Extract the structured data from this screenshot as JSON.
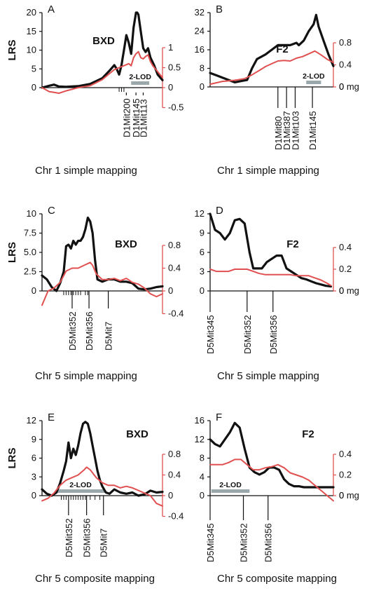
{
  "colors": {
    "lrs_line": "#111111",
    "effect_line": "#e05050",
    "lod_bar": "#9aa8ab",
    "axis": "#111111"
  },
  "chart_data": [
    {
      "type": "line",
      "panel": "A",
      "title": "BXD",
      "ylabel": "LRS",
      "caption": "Chr 1 simple mapping",
      "ylim": [
        0,
        20
      ],
      "yticks": [
        "0",
        "5",
        "10",
        "15",
        "20"
      ],
      "y2lim": [
        -0.5,
        1
      ],
      "y2ticks": [
        "-0.5",
        "0",
        "0.5",
        "1"
      ],
      "y2unit": "",
      "xlim": [
        0,
        100
      ],
      "lod_label": "2-LOD",
      "lod_range": [
        74,
        89
      ],
      "markers": [
        {
          "label": "D1Mit200",
          "x": 70
        },
        {
          "label": "D1Mit145",
          "x": 78
        },
        {
          "label": "D1Mit113",
          "x": 84
        }
      ],
      "minor_ticks": [
        64,
        66,
        68
      ],
      "series": [
        {
          "role": "lrs",
          "x": [
            0,
            6,
            10,
            14,
            20,
            30,
            40,
            50,
            56,
            60,
            62,
            64,
            66,
            67,
            68,
            70,
            72,
            74,
            76,
            78,
            79,
            80,
            82,
            84,
            86,
            88,
            90,
            93,
            96,
            100
          ],
          "y": [
            0,
            0.5,
            0.8,
            0.3,
            0.2,
            0.4,
            1,
            2.5,
            4.5,
            6,
            5,
            3.5,
            6,
            8,
            10,
            14,
            12,
            9,
            16,
            20,
            20,
            19.5,
            15,
            10.5,
            9.5,
            10.5,
            8,
            6,
            3.5,
            2
          ]
        },
        {
          "role": "effect",
          "x": [
            0,
            6,
            10,
            14,
            20,
            30,
            40,
            50,
            56,
            60,
            64,
            68,
            72,
            74,
            76,
            78,
            80,
            82,
            84,
            86,
            88,
            90,
            92,
            96,
            100
          ],
          "y": [
            0,
            -0.1,
            -0.12,
            -0.14,
            -0.08,
            0,
            0.05,
            0.2,
            0.35,
            0.45,
            0.5,
            0.55,
            0.6,
            0.55,
            0.75,
            0.85,
            0.9,
            0.75,
            0.72,
            0.78,
            0.82,
            0.65,
            0.55,
            0.4,
            0.25
          ]
        }
      ]
    },
    {
      "type": "line",
      "panel": "B",
      "title": "F2",
      "ylabel": "",
      "caption": "Chr 1 simple mapping",
      "ylim": [
        0,
        32
      ],
      "yticks": [
        "0",
        "8",
        "16",
        "24",
        "32"
      ],
      "y2lim": [
        0,
        0.8
      ],
      "y2ticks": [
        "0",
        "0.4",
        "0.8"
      ],
      "y2unit": "0 mg",
      "xlim": [
        0,
        100
      ],
      "lod_label": "2-LOD",
      "lod_range": [
        78,
        90
      ],
      "markers": [
        {
          "label": "D1Mit80",
          "x": 55
        },
        {
          "label": "D1Mit387",
          "x": 62
        },
        {
          "label": "D1Mit103",
          "x": 69
        },
        {
          "label": "D1Mit145",
          "x": 83
        }
      ],
      "minor_ticks": [],
      "series": [
        {
          "role": "lrs",
          "x": [
            0,
            5,
            10,
            15,
            20,
            25,
            30,
            34,
            38,
            45,
            50,
            55,
            60,
            65,
            70,
            72,
            76,
            80,
            84,
            86,
            88,
            92,
            96,
            100
          ],
          "y": [
            6,
            5,
            4,
            3,
            2,
            2.5,
            3,
            8,
            12,
            14,
            16,
            18,
            18,
            18,
            19,
            18,
            20,
            24,
            27,
            31,
            26,
            20,
            14,
            9
          ]
        },
        {
          "role": "effect",
          "x": [
            0,
            10,
            20,
            28,
            34,
            40,
            45,
            50,
            55,
            60,
            65,
            70,
            75,
            80,
            85,
            90,
            95,
            100
          ],
          "y": [
            0.05,
            0.1,
            0.12,
            0.15,
            0.22,
            0.3,
            0.37,
            0.42,
            0.47,
            0.48,
            0.47,
            0.52,
            0.55,
            0.6,
            0.65,
            0.58,
            0.5,
            0.44
          ]
        }
      ]
    },
    {
      "type": "line",
      "panel": "C",
      "title": "BXD",
      "ylabel": "LRS",
      "caption": "Chr 5 simple mapping",
      "ylim": [
        0,
        10
      ],
      "yticks": [
        "0",
        "2.5",
        "5.0",
        "7.5",
        "10"
      ],
      "y2lim": [
        -0.4,
        0.8
      ],
      "y2ticks": [
        "-0.4",
        "0",
        "0.4",
        "0.8"
      ],
      "y2unit": "",
      "xlim": [
        0,
        100
      ],
      "lod_label": "",
      "lod_range": [],
      "markers": [
        {
          "label": "D5Mit352",
          "x": 25
        },
        {
          "label": "D5Mit356",
          "x": 39
        },
        {
          "label": "D5Mit7",
          "x": 55
        }
      ],
      "minor_ticks": [
        18,
        20,
        22,
        24,
        26,
        28,
        30,
        32,
        36,
        38
      ],
      "series": [
        {
          "role": "lrs",
          "x": [
            0,
            4,
            8,
            12,
            15,
            18,
            20,
            22,
            24,
            26,
            28,
            30,
            32,
            34,
            36,
            38,
            40,
            42,
            44,
            46,
            50,
            55,
            60,
            65,
            70,
            75,
            80,
            85,
            90,
            95,
            100
          ],
          "y": [
            2,
            1.5,
            0.5,
            0,
            1,
            2.5,
            5.8,
            6,
            5.5,
            6.5,
            6,
            6.5,
            6.5,
            7,
            8,
            9.5,
            9,
            7.5,
            4,
            1.5,
            1.2,
            1.5,
            1.5,
            1.2,
            1.2,
            1,
            0.3,
            0.2,
            0.3,
            0.5,
            0.6
          ]
        },
        {
          "role": "effect",
          "x": [
            0,
            5,
            10,
            15,
            20,
            25,
            30,
            35,
            40,
            42,
            45,
            50,
            55,
            60,
            65,
            70,
            75,
            80,
            85,
            90,
            95,
            100
          ],
          "y": [
            -0.25,
            0,
            0.05,
            0.15,
            0.35,
            0.4,
            0.4,
            0.45,
            0.5,
            0.45,
            0.3,
            0.2,
            0.2,
            0.22,
            0.18,
            0.22,
            0.15,
            0.12,
            0.05,
            -0.05,
            -0.1,
            -0.05
          ]
        }
      ]
    },
    {
      "type": "line",
      "panel": "D",
      "title": "F2",
      "ylabel": "",
      "caption": "Chr 5 simple mapping",
      "ylim": [
        0,
        12
      ],
      "yticks": [
        "0",
        "3",
        "6",
        "9",
        "12"
      ],
      "y2lim": [
        0,
        0.4
      ],
      "y2ticks": [
        "0",
        "0.2",
        "0.4"
      ],
      "y2unit": "0 mg",
      "xlim": [
        0,
        100
      ],
      "lod_label": "",
      "lod_range": [],
      "markers": [
        {
          "label": "D5Mit345",
          "x": 0
        },
        {
          "label": "D5Mit352",
          "x": 30
        },
        {
          "label": "D5Mit356",
          "x": 51
        }
      ],
      "minor_ticks": [],
      "series": [
        {
          "role": "lrs",
          "x": [
            0,
            4,
            8,
            12,
            16,
            20,
            24,
            28,
            32,
            35,
            38,
            42,
            46,
            50,
            54,
            58,
            62,
            66,
            70,
            74,
            78,
            82,
            86,
            90,
            94,
            98
          ],
          "y": [
            12,
            9.5,
            9,
            8,
            9,
            11,
            11.2,
            10.5,
            6,
            3.5,
            3.5,
            3.5,
            4.5,
            5,
            5.5,
            5.5,
            3.5,
            3,
            2.5,
            2,
            1.8,
            1.5,
            1.2,
            1,
            0.8,
            0.7
          ]
        },
        {
          "role": "effect",
          "x": [
            0,
            5,
            10,
            15,
            20,
            25,
            30,
            35,
            40,
            45,
            50,
            55,
            60,
            65,
            70,
            75,
            80,
            85,
            90,
            95,
            98
          ],
          "y": [
            0.2,
            0.18,
            0.18,
            0.18,
            0.2,
            0.2,
            0.2,
            0.18,
            0.16,
            0.15,
            0.15,
            0.15,
            0.15,
            0.15,
            0.14,
            0.14,
            0.14,
            0.12,
            0.1,
            0.07,
            0.05
          ]
        }
      ]
    },
    {
      "type": "line",
      "panel": "E",
      "title": "BXD",
      "ylabel": "LRS",
      "caption": "Chr 5 composite mapping",
      "ylim": [
        0,
        12
      ],
      "yticks": [
        "0",
        "3",
        "6",
        "9",
        "12"
      ],
      "y2lim": [
        -0.4,
        0.8
      ],
      "y2ticks": [
        "-0.4",
        "0",
        "0.4",
        "0.8"
      ],
      "y2unit": "",
      "xlim": [
        0,
        100
      ],
      "lod_label": "2-LOD",
      "lod_range": [
        12,
        52
      ],
      "markers": [
        {
          "label": "D5Mit352",
          "x": 22
        },
        {
          "label": "D5Mit356",
          "x": 37
        },
        {
          "label": "D5Mit7",
          "x": 51
        }
      ],
      "minor_ticks": [
        16,
        18,
        20,
        24,
        26,
        28,
        30,
        32,
        34,
        36,
        40,
        44,
        48
      ],
      "series": [
        {
          "role": "lrs",
          "x": [
            0,
            4,
            8,
            12,
            15,
            18,
            20,
            22,
            24,
            26,
            28,
            30,
            32,
            34,
            36,
            38,
            40,
            42,
            44,
            46,
            48,
            50,
            53,
            56,
            60,
            65,
            70,
            75,
            80,
            85,
            90,
            95,
            100
          ],
          "y": [
            1,
            0.3,
            0,
            0.5,
            2,
            4,
            5.5,
            8.5,
            6,
            7.5,
            6.5,
            8,
            10,
            11.5,
            11.8,
            11.5,
            10,
            8,
            6,
            4,
            2.5,
            1.5,
            0.5,
            0.3,
            1,
            0.5,
            0.3,
            0.5,
            0,
            0.2,
            0.8,
            0.5,
            0.6
          ]
        },
        {
          "role": "effect",
          "x": [
            0,
            5,
            10,
            15,
            20,
            25,
            30,
            35,
            37,
            40,
            45,
            50,
            55,
            60,
            65,
            70,
            75,
            80,
            85,
            90,
            95,
            100
          ],
          "y": [
            -0.1,
            -0.05,
            0.05,
            0.2,
            0.3,
            0.35,
            0.4,
            0.5,
            0.55,
            0.5,
            0.35,
            0.25,
            0.2,
            0.2,
            0.15,
            0.18,
            0.15,
            0.1,
            0.05,
            0,
            -0.15,
            -0.2
          ]
        }
      ]
    },
    {
      "type": "line",
      "panel": "F",
      "title": "F2",
      "ylabel": "",
      "caption": "Chr 5 composite mapping",
      "ylim": [
        0,
        16
      ],
      "yticks": [
        "0",
        "4",
        "8",
        "12",
        "16"
      ],
      "y2lim": [
        0,
        0.4
      ],
      "y2ticks": [
        "0",
        "0.2",
        "0.4"
      ],
      "y2unit": "0 mg",
      "xlim": [
        0,
        100
      ],
      "lod_label": "2-LOD",
      "lod_range": [
        1,
        32
      ],
      "markers": [
        {
          "label": "D5Mit345",
          "x": 0
        },
        {
          "label": "D5Mit352",
          "x": 27
        },
        {
          "label": "D5Mit356",
          "x": 47
        }
      ],
      "minor_ticks": [],
      "series": [
        {
          "role": "lrs",
          "x": [
            0,
            4,
            8,
            12,
            16,
            20,
            24,
            28,
            32,
            36,
            40,
            44,
            48,
            52,
            56,
            60,
            64,
            68,
            72,
            76,
            80,
            85,
            90,
            95,
            100
          ],
          "y": [
            12,
            11,
            10.5,
            12,
            13.5,
            15.5,
            14.5,
            10,
            6,
            5,
            4.5,
            5,
            6,
            6,
            5.5,
            3.5,
            2.5,
            2,
            2,
            1.8,
            1.8,
            1.8,
            1.8,
            1.8,
            1.8
          ]
        },
        {
          "role": "effect",
          "x": [
            0,
            5,
            10,
            15,
            20,
            25,
            30,
            35,
            40,
            45,
            50,
            55,
            60,
            65,
            70,
            75,
            80,
            85,
            90,
            95,
            100
          ],
          "y": [
            0.3,
            0.3,
            0.3,
            0.32,
            0.35,
            0.35,
            0.3,
            0.25,
            0.25,
            0.27,
            0.28,
            0.3,
            0.27,
            0.22,
            0.2,
            0.18,
            0.15,
            0.1,
            0.05,
            0,
            -0.05
          ]
        }
      ]
    }
  ]
}
